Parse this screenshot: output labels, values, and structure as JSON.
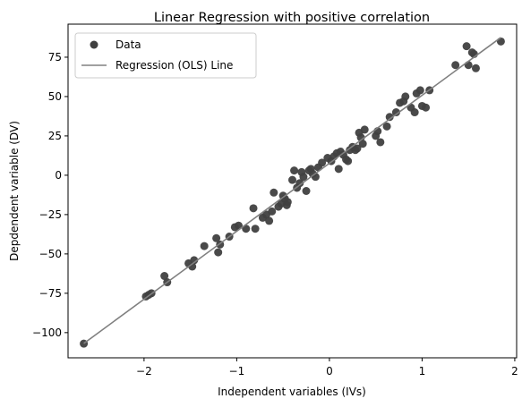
{
  "chart_data": {
    "type": "scatter",
    "title": "Linear Regression with positive correlation",
    "xlabel": "Independent variables (IVs)",
    "ylabel": "Depdendent variable (DV)",
    "xlim": [
      -2.82,
      2.02
    ],
    "ylim": [
      -116,
      96
    ],
    "xticks": [
      -2,
      -1,
      0,
      1,
      2
    ],
    "yticks": [
      -100,
      -75,
      -50,
      -25,
      0,
      25,
      50,
      75
    ],
    "grid": false,
    "legend_position": "top-left",
    "colors": {
      "points": "#404040",
      "line": "#808080"
    },
    "series": [
      {
        "name": "Data",
        "kind": "scatter",
        "points": [
          [
            -2.65,
            -107
          ],
          [
            -1.98,
            -77
          ],
          [
            -1.95,
            -76
          ],
          [
            -1.92,
            -75
          ],
          [
            -1.78,
            -64
          ],
          [
            -1.75,
            -68
          ],
          [
            -1.52,
            -56
          ],
          [
            -1.48,
            -58
          ],
          [
            -1.46,
            -54
          ],
          [
            -1.35,
            -45
          ],
          [
            -1.22,
            -40
          ],
          [
            -1.2,
            -49
          ],
          [
            -1.18,
            -44
          ],
          [
            -1.08,
            -39
          ],
          [
            -1.02,
            -33
          ],
          [
            -0.98,
            -32
          ],
          [
            -0.9,
            -34
          ],
          [
            -0.82,
            -21
          ],
          [
            -0.8,
            -34
          ],
          [
            -0.72,
            -27
          ],
          [
            -0.68,
            -25
          ],
          [
            -0.65,
            -29
          ],
          [
            -0.62,
            -23
          ],
          [
            -0.6,
            -11
          ],
          [
            -0.55,
            -20
          ],
          [
            -0.52,
            -18
          ],
          [
            -0.5,
            -13
          ],
          [
            -0.48,
            -15
          ],
          [
            -0.46,
            -19
          ],
          [
            -0.45,
            -17
          ],
          [
            -0.4,
            -3
          ],
          [
            -0.38,
            3
          ],
          [
            -0.35,
            -8
          ],
          [
            -0.32,
            -5
          ],
          [
            -0.3,
            2
          ],
          [
            -0.28,
            -1
          ],
          [
            -0.25,
            -10
          ],
          [
            -0.22,
            3
          ],
          [
            -0.2,
            4
          ],
          [
            -0.18,
            1
          ],
          [
            -0.15,
            -1
          ],
          [
            -0.12,
            5
          ],
          [
            -0.08,
            8
          ],
          [
            -0.02,
            11
          ],
          [
            0.02,
            9
          ],
          [
            0.05,
            12
          ],
          [
            0.08,
            14
          ],
          [
            0.1,
            4
          ],
          [
            0.12,
            15
          ],
          [
            0.15,
            13
          ],
          [
            0.18,
            10
          ],
          [
            0.2,
            9
          ],
          [
            0.22,
            16
          ],
          [
            0.25,
            18
          ],
          [
            0.28,
            16
          ],
          [
            0.3,
            17
          ],
          [
            0.32,
            27
          ],
          [
            0.34,
            24
          ],
          [
            0.36,
            20
          ],
          [
            0.38,
            29
          ],
          [
            0.5,
            25
          ],
          [
            0.52,
            28
          ],
          [
            0.55,
            21
          ],
          [
            0.62,
            31
          ],
          [
            0.65,
            37
          ],
          [
            0.72,
            40
          ],
          [
            0.76,
            46
          ],
          [
            0.8,
            47
          ],
          [
            0.82,
            50
          ],
          [
            0.88,
            43
          ],
          [
            0.92,
            40
          ],
          [
            0.94,
            52
          ],
          [
            0.98,
            54
          ],
          [
            1.0,
            44
          ],
          [
            1.04,
            43
          ],
          [
            1.08,
            54
          ],
          [
            1.36,
            70
          ],
          [
            1.48,
            82
          ],
          [
            1.5,
            70
          ],
          [
            1.54,
            78
          ],
          [
            1.56,
            77
          ],
          [
            1.58,
            68
          ],
          [
            1.85,
            85
          ]
        ]
      },
      {
        "name": "Regression (OLS) Line",
        "kind": "line",
        "slope": 43.2,
        "intercept": 7.6,
        "x_range": [
          -2.65,
          1.85
        ]
      }
    ]
  }
}
